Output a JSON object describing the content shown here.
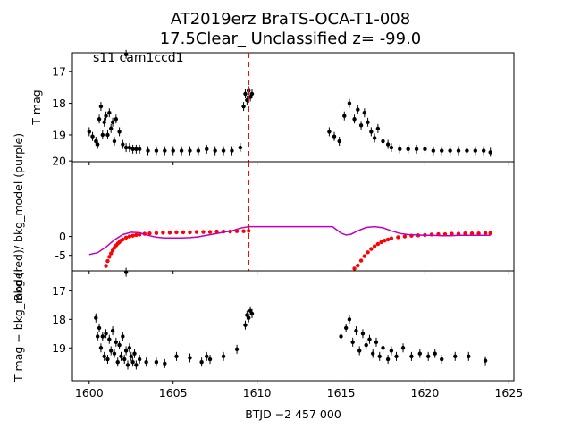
{
  "figure": {
    "title_line1": "AT2019erz  BraTS-OCA-T1-008",
    "title_line2": "17.5Clear_ Unclassified z= -99.0",
    "annotation": "s11 cam1ccd1"
  },
  "colors": {
    "flux": "#000000",
    "bkg": "#ff0000",
    "bkg_model": "#bf00bf",
    "event_line": "#ff0000"
  },
  "chart_data": [
    {
      "type": "scatter",
      "panel": "top",
      "ylabel": "T mag",
      "y_inverted": true,
      "xlim": [
        1599,
        1625.3
      ],
      "ylim": [
        19.85,
        16.4
      ],
      "yticks": [
        17,
        18,
        19
      ],
      "vline_x": 1609.5,
      "series": [
        {
          "name": "T mag",
          "color": "#000000",
          "x": [
            1600.0,
            1600.2,
            1600.4,
            1600.5,
            1600.6,
            1600.7,
            1600.8,
            1600.9,
            1601.0,
            1601.1,
            1601.2,
            1601.3,
            1601.4,
            1601.5,
            1601.6,
            1601.8,
            1602.0,
            1602.2,
            1602.4,
            1602.6,
            1602.8,
            1603.0,
            1603.5,
            1604.0,
            1604.5,
            1605.0,
            1605.5,
            1606.0,
            1606.5,
            1607.0,
            1607.5,
            1608.0,
            1608.5,
            1609.0,
            1609.2,
            1609.3,
            1609.4,
            1609.5,
            1609.6,
            1609.7,
            1614.3,
            1614.6,
            1614.9,
            1615.2,
            1615.5,
            1615.8,
            1616.0,
            1616.2,
            1616.4,
            1616.6,
            1616.8,
            1617.0,
            1617.2,
            1617.5,
            1617.8,
            1618.0,
            1618.5,
            1619.0,
            1619.5,
            1620.0,
            1620.5,
            1621.0,
            1621.5,
            1622.0,
            1622.5,
            1623.0,
            1623.5,
            1623.9
          ],
          "y": [
            18.9,
            19.05,
            19.2,
            19.3,
            18.5,
            18.1,
            19.0,
            18.6,
            18.4,
            19.0,
            18.3,
            18.8,
            18.6,
            19.2,
            18.5,
            18.9,
            19.3,
            19.4,
            19.4,
            19.45,
            19.45,
            19.45,
            19.5,
            19.5,
            19.5,
            19.5,
            19.5,
            19.5,
            19.5,
            19.45,
            19.5,
            19.5,
            19.5,
            19.4,
            18.1,
            17.7,
            17.9,
            17.6,
            17.8,
            17.7,
            18.9,
            19.05,
            19.2,
            18.4,
            18.0,
            18.5,
            18.2,
            18.7,
            18.3,
            18.6,
            18.9,
            19.1,
            18.8,
            19.2,
            19.3,
            19.4,
            19.45,
            19.45,
            19.45,
            19.45,
            19.5,
            19.5,
            19.5,
            19.5,
            19.5,
            19.5,
            19.5,
            19.55
          ]
        },
        {
          "name": "outlier",
          "color": "#000000",
          "x": [
            1602.2
          ],
          "y": [
            16.45
          ]
        }
      ]
    },
    {
      "type": "scatter",
      "panel": "middle",
      "ylabel": "Bkg (red)/ bkg_model (purple)",
      "xlim": [
        1599,
        1625.3
      ],
      "ylim": [
        -9.1,
        19.8
      ],
      "yticks": [
        -5,
        0,
        20
      ],
      "vline_x": 1609.5,
      "series": [
        {
          "name": "Bkg",
          "color": "#ff0000",
          "x": [
            1601.0,
            1601.1,
            1601.2,
            1601.3,
            1601.4,
            1601.5,
            1601.6,
            1601.7,
            1601.8,
            1601.9,
            1602.0,
            1602.2,
            1602.4,
            1602.6,
            1602.8,
            1603.0,
            1603.3,
            1603.6,
            1604.0,
            1604.4,
            1604.8,
            1605.2,
            1605.6,
            1606.0,
            1606.4,
            1606.8,
            1607.2,
            1607.6,
            1608.0,
            1608.4,
            1608.8,
            1609.2,
            1609.5,
            1615.8,
            1616.0,
            1616.2,
            1616.4,
            1616.6,
            1616.8,
            1617.0,
            1617.2,
            1617.4,
            1617.6,
            1617.8,
            1618.0,
            1618.4,
            1618.8,
            1619.2,
            1619.6,
            1620.0,
            1620.4,
            1620.8,
            1621.2,
            1621.6,
            1622.0,
            1622.4,
            1622.8,
            1623.2,
            1623.6,
            1623.9
          ],
          "y": [
            -7.8,
            -6.5,
            -5.4,
            -4.5,
            -3.7,
            -3.0,
            -2.4,
            -1.9,
            -1.5,
            -1.1,
            -0.8,
            -0.3,
            0.0,
            0.2,
            0.4,
            0.5,
            0.7,
            0.8,
            0.9,
            1.0,
            1.0,
            1.1,
            1.1,
            1.1,
            1.2,
            1.2,
            1.2,
            1.3,
            1.3,
            1.3,
            1.4,
            1.4,
            1.5,
            -8.5,
            -7.7,
            -6.4,
            -5.2,
            -4.2,
            -3.3,
            -2.6,
            -2.0,
            -1.5,
            -1.1,
            -0.8,
            -0.5,
            -0.2,
            0.0,
            0.2,
            0.3,
            0.4,
            0.5,
            0.6,
            0.6,
            0.7,
            0.7,
            0.8,
            0.8,
            0.8,
            0.9,
            0.9
          ]
        },
        {
          "name": "bkg_model",
          "color": "#bf00bf",
          "x": [
            1600.0,
            1600.5,
            1601.0,
            1601.5,
            1602.0,
            1602.5,
            1603.0,
            1603.5,
            1604.0,
            1604.5,
            1605.0,
            1605.5,
            1606.0,
            1606.5,
            1607.0,
            1607.5,
            1608.0,
            1608.5,
            1609.0,
            1609.5,
            1610.0,
            1611.0,
            1612.0,
            1613.0,
            1614.0,
            1614.5,
            1615.0,
            1615.3,
            1615.6,
            1616.0,
            1616.5,
            1617.0,
            1617.5,
            1618.0,
            1618.5,
            1619.0,
            1619.5,
            1620.0,
            1620.5,
            1621.0,
            1621.5,
            1622.0,
            1622.5,
            1623.0,
            1623.5,
            1623.9
          ],
          "y": [
            -4.8,
            -4.3,
            -2.8,
            -0.9,
            0.5,
            1.1,
            1.0,
            0.3,
            -0.2,
            -0.4,
            -0.4,
            -0.4,
            -0.3,
            -0.1,
            0.3,
            0.7,
            1.1,
            1.5,
            2.2,
            2.6,
            2.6,
            2.6,
            2.6,
            2.6,
            2.6,
            2.6,
            0.9,
            0.4,
            0.6,
            1.5,
            2.4,
            2.6,
            2.3,
            1.5,
            0.8,
            0.5,
            0.4,
            0.3,
            0.3,
            0.2,
            0.2,
            0.3,
            0.3,
            0.3,
            0.3,
            0.3
          ]
        }
      ]
    },
    {
      "type": "scatter",
      "panel": "bottom",
      "xlabel": "BTJD −2 457 000",
      "ylabel": "T mag − bkg_model",
      "y_inverted": true,
      "xlim": [
        1599,
        1625.3
      ],
      "ylim": [
        20.15,
        16.3
      ],
      "yticks": [
        17,
        18,
        19
      ],
      "xticks": [
        1600,
        1605,
        1610,
        1615,
        1620,
        1625
      ],
      "series": [
        {
          "name": "T mag - bkg_model",
          "color": "#000000",
          "x": [
            1600.4,
            1600.5,
            1600.6,
            1600.7,
            1600.8,
            1600.9,
            1601.0,
            1601.1,
            1601.2,
            1601.3,
            1601.4,
            1601.5,
            1601.6,
            1601.7,
            1601.8,
            1601.9,
            1602.0,
            1602.1,
            1602.2,
            1602.3,
            1602.4,
            1602.5,
            1602.6,
            1602.7,
            1602.8,
            1603.0,
            1603.4,
            1604.0,
            1604.5,
            1605.2,
            1606.0,
            1606.7,
            1607.0,
            1607.2,
            1608.0,
            1608.8,
            1609.3,
            1609.4,
            1609.5,
            1609.6,
            1609.7,
            1615.0,
            1615.3,
            1615.5,
            1615.7,
            1615.9,
            1616.1,
            1616.3,
            1616.5,
            1616.7,
            1616.9,
            1617.1,
            1617.3,
            1617.5,
            1617.8,
            1618.0,
            1618.3,
            1618.7,
            1619.2,
            1619.7,
            1620.2,
            1620.6,
            1621.0,
            1621.8,
            1622.6,
            1623.6
          ],
          "y": [
            17.95,
            18.6,
            18.3,
            19.0,
            18.6,
            19.3,
            18.5,
            19.4,
            18.7,
            19.1,
            18.4,
            19.2,
            18.8,
            19.5,
            18.9,
            19.3,
            18.6,
            19.4,
            19.1,
            19.6,
            19.0,
            19.3,
            19.5,
            19.2,
            19.6,
            19.4,
            19.5,
            19.5,
            19.55,
            19.3,
            19.35,
            19.5,
            19.3,
            19.4,
            19.3,
            19.05,
            18.2,
            17.85,
            17.95,
            17.7,
            17.8,
            18.6,
            18.3,
            18.0,
            18.8,
            18.4,
            19.1,
            18.5,
            18.9,
            18.7,
            19.2,
            18.8,
            19.3,
            19.0,
            19.4,
            19.1,
            19.3,
            19.0,
            19.3,
            19.2,
            19.3,
            19.2,
            19.4,
            19.3,
            19.3,
            19.45
          ]
        },
        {
          "name": "outlier",
          "color": "#000000",
          "x": [
            1602.2
          ],
          "y": [
            16.35
          ]
        }
      ]
    }
  ]
}
